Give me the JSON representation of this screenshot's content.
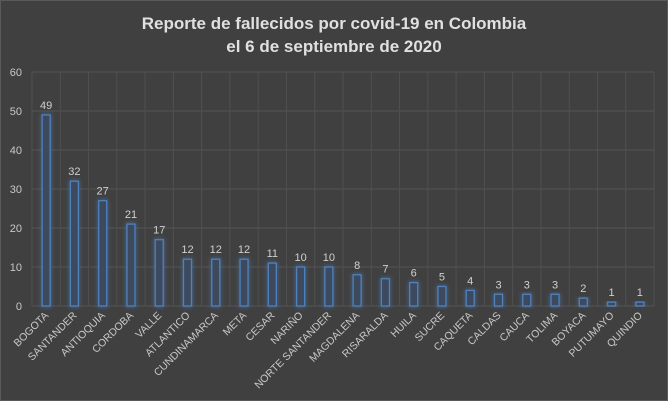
{
  "chart_data": {
    "type": "bar",
    "title": [
      "Reporte de fallecidos por covid-19 en Colombia",
      "el 6 de septiembre de 2020"
    ],
    "categories": [
      "BOGOTA",
      "SANTANDER",
      "ANTIOQUIA",
      "CORDOBA",
      "VALLE",
      "ATLANTICO",
      "CUNDINAMARCA",
      "META",
      "CESAR",
      "NARIÑO",
      "NORTE SANTANDER",
      "MAGDALENA",
      "RISARALDA",
      "HUILA",
      "SUCRE",
      "CAQUETA",
      "CALDAS",
      "CAUCA",
      "TOLIMA",
      "BOYACA",
      "PUTUMAYO",
      "QUINDIO"
    ],
    "values": [
      49,
      32,
      27,
      21,
      17,
      12,
      12,
      12,
      11,
      10,
      10,
      8,
      7,
      6,
      5,
      4,
      3,
      3,
      3,
      2,
      1,
      1
    ],
    "ylim": [
      0,
      60
    ],
    "yticks": [
      0,
      10,
      20,
      30,
      40,
      50,
      60
    ],
    "xlabel": "",
    "ylabel": "",
    "grid": true,
    "bar_color": "#4f81bd",
    "data_labels": true
  }
}
